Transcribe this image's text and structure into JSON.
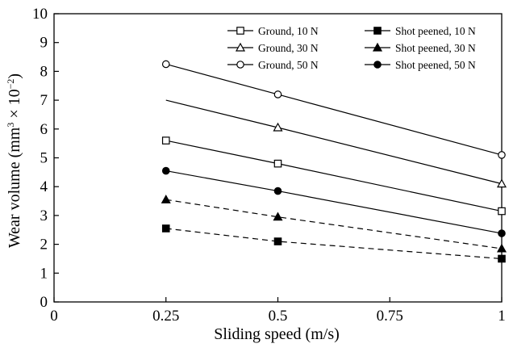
{
  "chart_data": {
    "type": "line",
    "title": "",
    "xlabel": "Sliding speed (m/s)",
    "ylabel_parts": {
      "prefix": "Wear volume (mm",
      "sup1": "3",
      "mid": " × 10",
      "sup2": "−2",
      "suffix": ")"
    },
    "xlim": [
      0,
      1
    ],
    "ylim": [
      0,
      10
    ],
    "xticks": [
      0,
      0.25,
      0.5,
      0.75,
      1
    ],
    "xtick_labels": [
      "0",
      "0.25",
      "0.5",
      "0.75",
      "1"
    ],
    "yticks": [
      0,
      1,
      2,
      3,
      4,
      5,
      6,
      7,
      8,
      9,
      10
    ],
    "ytick_labels": [
      "0",
      "1",
      "2",
      "3",
      "4",
      "5",
      "6",
      "7",
      "8",
      "9",
      "10"
    ],
    "grid": false,
    "legend_position": "top-right",
    "series": [
      {
        "name": "Ground, 10 N",
        "marker": "square-open",
        "line": "solid",
        "x": [
          0.25,
          0.5,
          1
        ],
        "y": [
          5.6,
          4.8,
          3.15
        ]
      },
      {
        "name": "Ground, 30 N",
        "marker": "triangle-open",
        "line": "solid",
        "x": [
          0.25,
          0.5,
          1
        ],
        "y": [
          7.0,
          6.05,
          4.1
        ],
        "hidden_markers": [
          0
        ]
      },
      {
        "name": "Ground, 50 N",
        "marker": "circle-open",
        "line": "solid",
        "x": [
          0.25,
          0.5,
          1
        ],
        "y": [
          8.25,
          7.2,
          5.1
        ]
      },
      {
        "name": "Shot peened, 10 N",
        "marker": "square-filled",
        "line": "dashed",
        "x": [
          0.25,
          0.5,
          1
        ],
        "y": [
          2.55,
          2.1,
          1.5
        ]
      },
      {
        "name": "Shot peened, 30 N",
        "marker": "triangle-filled",
        "line": "dashed",
        "x": [
          0.25,
          0.5,
          1
        ],
        "y": [
          3.55,
          2.95,
          1.85
        ]
      },
      {
        "name": "Shot peened, 50 N",
        "marker": "circle-filled",
        "line": "solid",
        "x": [
          0.25,
          0.5,
          1
        ],
        "y": [
          4.55,
          3.85,
          2.38
        ]
      }
    ],
    "legend_order": [
      0,
      3,
      1,
      4,
      2,
      5
    ]
  }
}
